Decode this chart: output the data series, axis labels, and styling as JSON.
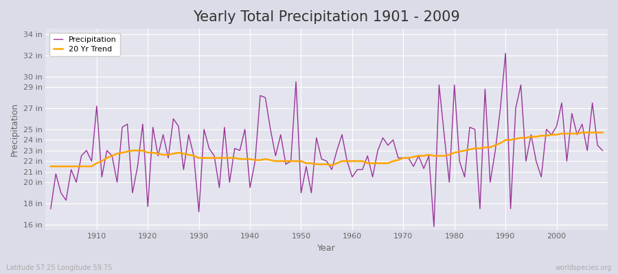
{
  "title": "Yearly Total Precipitation 1901 - 2009",
  "xlabel": "Year",
  "ylabel": "Precipitation",
  "subtitle": "Latitude 57.25 Longitude 59.75",
  "watermark": "worldspecies.org",
  "years": [
    1901,
    1902,
    1903,
    1904,
    1905,
    1906,
    1907,
    1908,
    1909,
    1910,
    1911,
    1912,
    1913,
    1914,
    1915,
    1916,
    1917,
    1918,
    1919,
    1920,
    1921,
    1922,
    1923,
    1924,
    1925,
    1926,
    1927,
    1928,
    1929,
    1930,
    1931,
    1932,
    1933,
    1934,
    1935,
    1936,
    1937,
    1938,
    1939,
    1940,
    1941,
    1942,
    1943,
    1944,
    1945,
    1946,
    1947,
    1948,
    1949,
    1950,
    1951,
    1952,
    1953,
    1954,
    1955,
    1956,
    1957,
    1958,
    1959,
    1960,
    1961,
    1962,
    1963,
    1964,
    1965,
    1966,
    1967,
    1968,
    1969,
    1970,
    1971,
    1972,
    1973,
    1974,
    1975,
    1976,
    1977,
    1978,
    1979,
    1980,
    1981,
    1982,
    1983,
    1984,
    1985,
    1986,
    1987,
    1988,
    1989,
    1990,
    1991,
    1992,
    1993,
    1994,
    1995,
    1996,
    1997,
    1998,
    1999,
    2000,
    2001,
    2002,
    2003,
    2004,
    2005,
    2006,
    2007,
    2008,
    2009
  ],
  "precip": [
    17.5,
    20.8,
    19.0,
    18.3,
    21.2,
    20.0,
    22.5,
    23.0,
    22.0,
    27.2,
    20.5,
    23.0,
    22.5,
    20.0,
    25.2,
    25.5,
    19.0,
    21.5,
    25.5,
    17.7,
    25.2,
    22.5,
    24.5,
    22.3,
    26.0,
    25.3,
    21.2,
    24.5,
    22.5,
    17.2,
    25.0,
    23.2,
    22.5,
    19.5,
    25.2,
    20.0,
    23.2,
    23.0,
    25.0,
    19.5,
    22.0,
    28.2,
    28.0,
    25.0,
    22.5,
    24.5,
    21.7,
    22.0,
    29.5,
    19.0,
    21.5,
    19.0,
    24.2,
    22.2,
    22.0,
    21.2,
    23.0,
    24.5,
    22.0,
    20.5,
    21.2,
    21.2,
    22.5,
    20.5,
    23.0,
    24.2,
    23.5,
    24.0,
    22.3,
    22.3,
    22.3,
    21.5,
    22.5,
    21.3,
    22.5,
    15.8,
    29.2,
    24.5,
    20.0,
    29.2,
    22.0,
    20.5,
    25.2,
    25.0,
    17.5,
    28.8,
    20.0,
    23.0,
    27.0,
    32.2,
    17.5,
    27.0,
    29.2,
    22.0,
    24.5,
    22.0,
    20.5,
    25.0,
    24.5,
    25.3,
    27.5,
    22.0,
    26.5,
    24.5,
    25.5,
    23.0,
    27.5,
    23.5,
    23.0
  ],
  "trend": [
    21.5,
    21.5,
    21.5,
    21.5,
    21.5,
    21.5,
    21.5,
    21.5,
    21.5,
    21.8,
    22.0,
    22.3,
    22.5,
    22.7,
    22.8,
    22.9,
    23.0,
    23.0,
    23.0,
    22.8,
    22.8,
    22.7,
    22.6,
    22.6,
    22.7,
    22.8,
    22.7,
    22.6,
    22.5,
    22.3,
    22.3,
    22.3,
    22.3,
    22.3,
    22.3,
    22.3,
    22.3,
    22.2,
    22.2,
    22.2,
    22.1,
    22.1,
    22.2,
    22.1,
    22.0,
    22.0,
    22.0,
    22.0,
    22.0,
    22.0,
    21.8,
    21.8,
    21.7,
    21.7,
    21.7,
    21.6,
    21.8,
    22.0,
    22.0,
    22.0,
    22.0,
    22.0,
    21.8,
    21.8,
    21.8,
    21.8,
    21.8,
    22.0,
    22.1,
    22.3,
    22.3,
    22.4,
    22.5,
    22.5,
    22.6,
    22.5,
    22.5,
    22.5,
    22.6,
    22.8,
    22.9,
    23.0,
    23.1,
    23.2,
    23.2,
    23.3,
    23.3,
    23.5,
    23.7,
    24.0,
    24.0,
    24.1,
    24.2,
    24.2,
    24.3,
    24.3,
    24.4,
    24.4,
    24.5,
    24.5,
    24.6,
    24.6,
    24.6,
    24.6,
    24.7,
    24.7,
    24.7,
    24.7,
    24.7
  ],
  "precip_color": "#993399",
  "trend_color": "#FFA500",
  "bg_color": "#DCDCE8",
  "plot_bg_color": "#E4E4EE",
  "grid_color": "#FFFFFF",
  "ylim": [
    15.5,
    34.5
  ],
  "yticks": [
    16,
    18,
    20,
    21,
    22,
    23,
    24,
    25,
    27,
    29,
    30,
    32,
    34
  ],
  "xlim": [
    1900,
    2010
  ],
  "xticks": [
    1910,
    1920,
    1930,
    1940,
    1950,
    1960,
    1970,
    1980,
    1990,
    2000
  ],
  "title_fontsize": 15,
  "axis_label_fontsize": 9,
  "tick_fontsize": 8
}
